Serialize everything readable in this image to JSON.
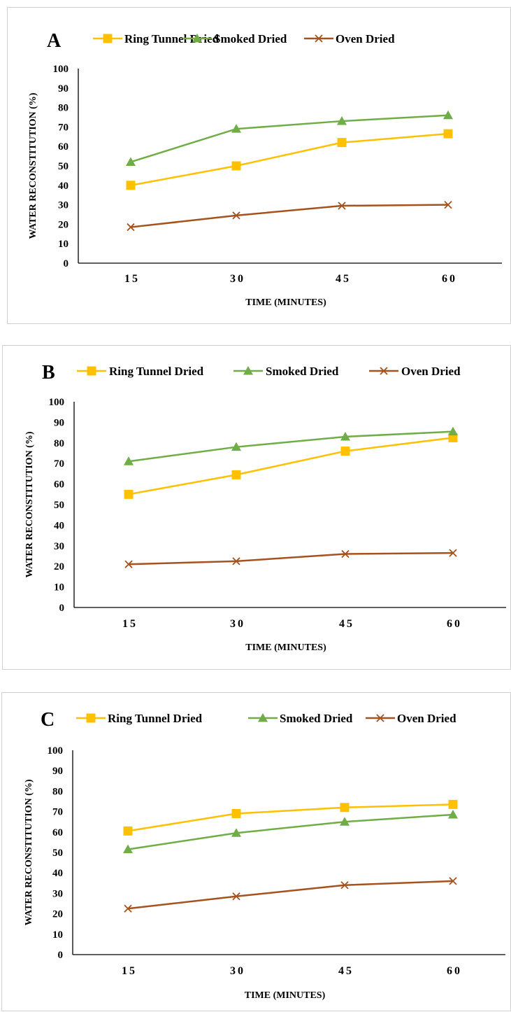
{
  "chart_data": [
    {
      "type": "line",
      "panel_label": "A",
      "title": "",
      "categories": [
        "15",
        "30",
        "45",
        "60"
      ],
      "xlabel": "TIME (MINUTES)",
      "ylabel": "WATER RECONSTITUTION (%)",
      "ylim": [
        0,
        100
      ],
      "yticks": [
        0,
        10,
        20,
        30,
        40,
        50,
        60,
        70,
        80,
        90,
        100
      ],
      "grid": false,
      "legend": "top",
      "series": [
        {
          "name": "Ring Tunnel Dried",
          "color": "#FFC000",
          "marker": "square",
          "values": [
            40,
            50,
            62,
            66.5
          ]
        },
        {
          "name": "Smoked Dried",
          "color": "#70AD47",
          "marker": "triangle",
          "values": [
            52,
            69,
            73,
            76
          ]
        },
        {
          "name": "Oven Dried",
          "color": "#A5521F",
          "marker": "x",
          "values": [
            18.5,
            24.5,
            29.5,
            30
          ]
        }
      ]
    },
    {
      "type": "line",
      "panel_label": "B",
      "title": "",
      "categories": [
        "15",
        "30",
        "45",
        "60"
      ],
      "xlabel": "TIME (MINUTES)",
      "ylabel": "WATER RECONSTITUTION (%)",
      "ylim": [
        0,
        100
      ],
      "yticks": [
        0,
        10,
        20,
        30,
        40,
        50,
        60,
        70,
        80,
        90,
        100
      ],
      "grid": false,
      "legend": "top",
      "series": [
        {
          "name": "Ring Tunnel Dried",
          "color": "#FFC000",
          "marker": "square",
          "values": [
            55,
            64.5,
            76,
            82.5
          ]
        },
        {
          "name": "Smoked Dried",
          "color": "#70AD47",
          "marker": "triangle",
          "values": [
            71,
            78,
            83,
            85.5
          ]
        },
        {
          "name": "Oven Dried",
          "color": "#A5521F",
          "marker": "x",
          "values": [
            21,
            22.5,
            26,
            26.5
          ]
        }
      ]
    },
    {
      "type": "line",
      "panel_label": "C",
      "title": "",
      "categories": [
        "15",
        "30",
        "45",
        "60"
      ],
      "xlabel": "TIME (MINUTES)",
      "ylabel": "WATER RECONSTITUTION (%)",
      "ylim": [
        0,
        100
      ],
      "yticks": [
        0,
        10,
        20,
        30,
        40,
        50,
        60,
        70,
        80,
        90,
        100
      ],
      "grid": false,
      "legend": "top",
      "series": [
        {
          "name": "Ring Tunnel Dried",
          "color": "#FFC000",
          "marker": "square",
          "values": [
            60.5,
            69,
            72,
            73.5
          ]
        },
        {
          "name": "Smoked Dried",
          "color": "#70AD47",
          "marker": "triangle",
          "values": [
            51.5,
            59.5,
            65,
            68.5
          ]
        },
        {
          "name": "Oven Dried",
          "color": "#A5521F",
          "marker": "x",
          "values": [
            22.5,
            28.5,
            34,
            36
          ]
        }
      ]
    }
  ]
}
